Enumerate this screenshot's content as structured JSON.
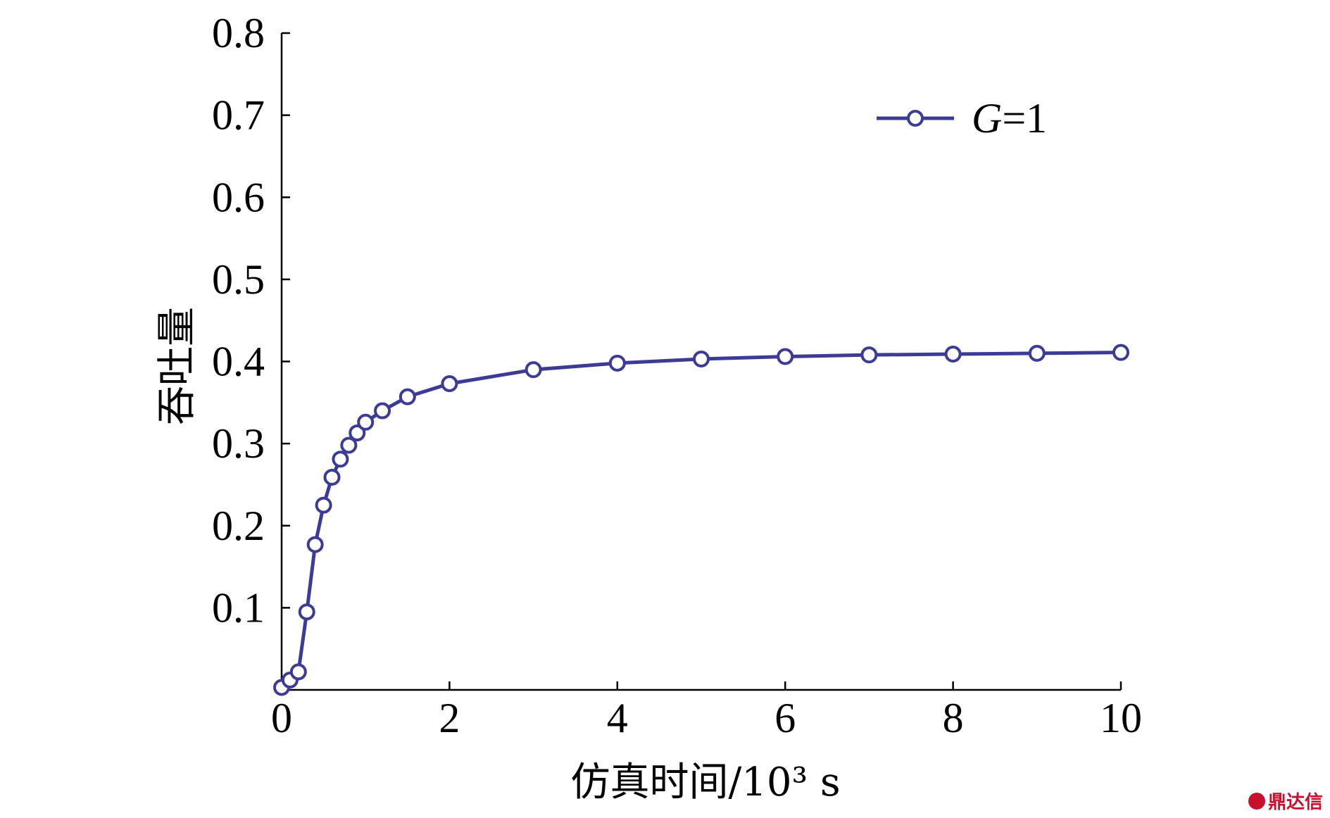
{
  "chart_data": {
    "type": "line",
    "title": "",
    "xlabel": "仿真时间/10³ s",
    "ylabel": "吞吐量",
    "xlim": [
      0,
      10
    ],
    "ylim": [
      0,
      0.8
    ],
    "x_ticks": [
      0,
      2,
      4,
      6,
      8,
      10
    ],
    "x_tick_labels": [
      "0",
      "2",
      "4",
      "6",
      "8",
      "10"
    ],
    "y_ticks": [
      0.1,
      0.2,
      0.3,
      0.4,
      0.5,
      0.6,
      0.7,
      0.8
    ],
    "y_tick_labels": [
      "0.1",
      "0.2",
      "0.3",
      "0.4",
      "0.5",
      "0.6",
      "0.7",
      "0.8"
    ],
    "grid": false,
    "legend_position": "top-right",
    "series": [
      {
        "name": "G=1",
        "legend_italic": "G",
        "legend_rest": "=1",
        "color": "#3c3c96",
        "marker": "circle",
        "x": [
          0.0,
          0.1,
          0.2,
          0.3,
          0.4,
          0.5,
          0.6,
          0.7,
          0.8,
          0.9,
          1.0,
          1.2,
          1.5,
          2.0,
          3.0,
          4.0,
          5.0,
          6.0,
          7.0,
          8.0,
          9.0,
          10.0
        ],
        "y": [
          0.003,
          0.012,
          0.022,
          0.095,
          0.177,
          0.225,
          0.259,
          0.281,
          0.298,
          0.313,
          0.326,
          0.34,
          0.357,
          0.373,
          0.39,
          0.398,
          0.403,
          0.406,
          0.408,
          0.409,
          0.41,
          0.411
        ]
      }
    ]
  },
  "watermark": {
    "text": "鼎达信",
    "color": "#c8102e"
  }
}
